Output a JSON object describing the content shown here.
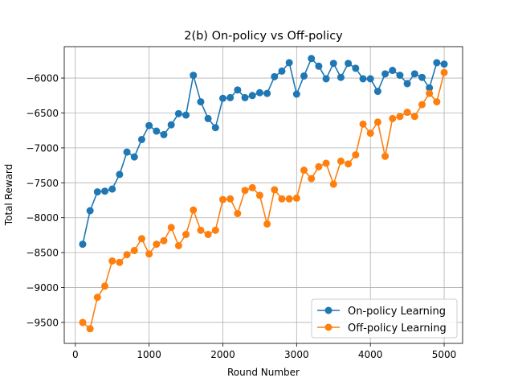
{
  "chart_data": {
    "type": "line",
    "title": "2(b) On-policy vs Off-policy",
    "xlabel": "Round Number",
    "ylabel": "Total Reward",
    "xlim": [
      -150,
      5250
    ],
    "ylim": [
      -9800,
      -5550
    ],
    "xticks": [
      0,
      1000,
      2000,
      3000,
      4000,
      5000
    ],
    "yticks": [
      -9500,
      -9000,
      -8500,
      -8000,
      -7500,
      -7000,
      -6500,
      -6000
    ],
    "grid": true,
    "legend_position": "lower-right",
    "x": [
      100,
      200,
      300,
      400,
      500,
      600,
      700,
      800,
      900,
      1000,
      1100,
      1200,
      1300,
      1400,
      1500,
      1600,
      1700,
      1800,
      1900,
      2000,
      2100,
      2200,
      2300,
      2400,
      2500,
      2600,
      2700,
      2800,
      2900,
      3000,
      3100,
      3200,
      3300,
      3400,
      3500,
      3600,
      3700,
      3800,
      3900,
      4000,
      4100,
      4200,
      4300,
      4400,
      4500,
      4600,
      4700,
      4800,
      4900,
      5000
    ],
    "series": [
      {
        "name": "On-policy Learning",
        "color": "#1f77b4",
        "values": [
          -8380,
          -7900,
          -7630,
          -7620,
          -7590,
          -7380,
          -7060,
          -7130,
          -6880,
          -6680,
          -6760,
          -6810,
          -6670,
          -6510,
          -6530,
          -5960,
          -6340,
          -6580,
          -6710,
          -6290,
          -6280,
          -6170,
          -6280,
          -6250,
          -6210,
          -6220,
          -5980,
          -5900,
          -5780,
          -6230,
          -5970,
          -5720,
          -5830,
          -6010,
          -5790,
          -5990,
          -5790,
          -5860,
          -6010,
          -6010,
          -6190,
          -5940,
          -5890,
          -5960,
          -6080,
          -5940,
          -5990,
          -6140,
          -5780,
          -5800
        ]
      },
      {
        "name": "Off-policy Learning",
        "color": "#ff7f0e",
        "values": [
          -9500,
          -9590,
          -9140,
          -8980,
          -8620,
          -8640,
          -8530,
          -8470,
          -8300,
          -8520,
          -8380,
          -8330,
          -8140,
          -8400,
          -8240,
          -7890,
          -8180,
          -8240,
          -8180,
          -7740,
          -7730,
          -7940,
          -7610,
          -7570,
          -7680,
          -8090,
          -7600,
          -7730,
          -7730,
          -7720,
          -7320,
          -7440,
          -7270,
          -7220,
          -7520,
          -7190,
          -7230,
          -7100,
          -6660,
          -6790,
          -6630,
          -7120,
          -6580,
          -6550,
          -6490,
          -6550,
          -6380,
          -6220,
          -6340,
          -5920
        ]
      }
    ]
  }
}
